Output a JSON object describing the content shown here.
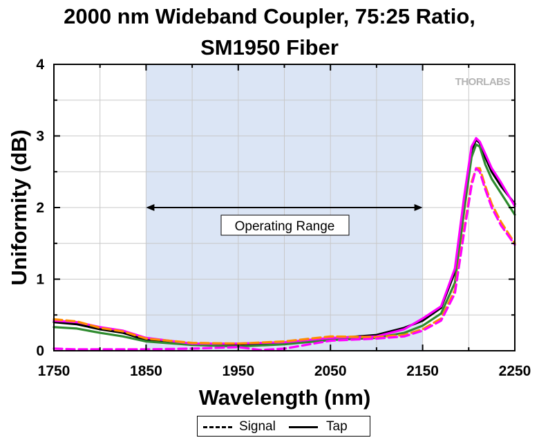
{
  "title_line1": "2000 nm Wideband Coupler, 75:25 Ratio,",
  "title_line2": "SM1950 Fiber",
  "watermark": "THORLABS",
  "range_label": "Operating Range",
  "legend": {
    "signal": "Signal",
    "tap": "Tap"
  },
  "chart_data": {
    "type": "line",
    "title": "2000 nm Wideband Coupler, 75:25 Ratio, SM1950 Fiber",
    "xlabel": "Wavelength (nm)",
    "ylabel": "Uniformity (dB)",
    "xlim": [
      1750,
      2250
    ],
    "ylim": [
      0,
      4
    ],
    "xticks": [
      1750,
      1850,
      1950,
      2050,
      2150,
      2250
    ],
    "yticks": [
      0,
      1,
      2,
      3,
      4
    ],
    "grid": true,
    "shaded_region": {
      "x": [
        1850,
        2150
      ],
      "color": "#dbe5f5",
      "label": "Operating Range"
    },
    "series": [
      {
        "name": "Tap",
        "style": "solid",
        "color": "#000000",
        "x": [
          1750,
          1775,
          1800,
          1825,
          1850,
          1900,
          1950,
          2000,
          2050,
          2100,
          2130,
          2150,
          2170,
          2185,
          2195,
          2203,
          2208,
          2212,
          2218,
          2225,
          2235,
          2250
        ],
        "y": [
          0.4,
          0.37,
          0.3,
          0.25,
          0.15,
          0.1,
          0.09,
          0.11,
          0.17,
          0.22,
          0.32,
          0.42,
          0.6,
          1.1,
          2.1,
          2.8,
          2.95,
          2.9,
          2.7,
          2.5,
          2.3,
          2.05
        ]
      },
      {
        "name": "Tap",
        "style": "solid",
        "color": "#2e8b2e",
        "x": [
          1750,
          1775,
          1800,
          1825,
          1850,
          1900,
          1950,
          2000,
          2050,
          2100,
          2130,
          2150,
          2170,
          2185,
          2195,
          2203,
          2208,
          2212,
          2218,
          2225,
          2235,
          2250
        ],
        "y": [
          0.33,
          0.31,
          0.25,
          0.2,
          0.13,
          0.08,
          0.06,
          0.09,
          0.15,
          0.18,
          0.25,
          0.35,
          0.52,
          0.95,
          1.95,
          2.7,
          2.88,
          2.85,
          2.6,
          2.4,
          2.2,
          1.9
        ]
      },
      {
        "name": "Tap",
        "style": "solid",
        "color": "#ff00ff",
        "x": [
          1750,
          1775,
          1800,
          1825,
          1850,
          1900,
          1950,
          2000,
          2050,
          2100,
          2130,
          2150,
          2170,
          2185,
          2195,
          2203,
          2208,
          2212,
          2218,
          2225,
          2235,
          2250
        ],
        "y": [
          0.42,
          0.4,
          0.33,
          0.28,
          0.18,
          0.1,
          0.1,
          0.12,
          0.18,
          0.2,
          0.3,
          0.45,
          0.62,
          1.15,
          2.15,
          2.85,
          2.97,
          2.92,
          2.75,
          2.55,
          2.35,
          2.02
        ]
      },
      {
        "name": "Signal",
        "style": "dashed",
        "color": "#ff8c00",
        "x": [
          1750,
          1775,
          1800,
          1825,
          1850,
          1900,
          1950,
          2000,
          2050,
          2100,
          2130,
          2150,
          2170,
          2185,
          2195,
          2203,
          2208,
          2212,
          2218,
          2225,
          2235,
          2250
        ],
        "y": [
          0.44,
          0.41,
          0.32,
          0.27,
          0.17,
          0.11,
          0.1,
          0.13,
          0.2,
          0.19,
          0.22,
          0.3,
          0.45,
          0.85,
          1.7,
          2.35,
          2.55,
          2.55,
          2.3,
          2.05,
          1.8,
          1.5
        ]
      },
      {
        "name": "Signal",
        "style": "dashed",
        "color": "#ff00ff",
        "x": [
          1750,
          1775,
          1800,
          1850,
          1900,
          1950,
          1975,
          2000,
          2050,
          2100,
          2130,
          2150,
          2170,
          2185,
          2195,
          2203,
          2208,
          2212,
          2218,
          2225,
          2235,
          2250
        ],
        "y": [
          0.03,
          0.02,
          0.02,
          0.02,
          0.03,
          0.05,
          0.01,
          0.03,
          0.14,
          0.17,
          0.2,
          0.28,
          0.42,
          0.8,
          1.65,
          2.3,
          2.55,
          2.5,
          2.25,
          2.0,
          1.75,
          1.48
        ]
      }
    ]
  }
}
